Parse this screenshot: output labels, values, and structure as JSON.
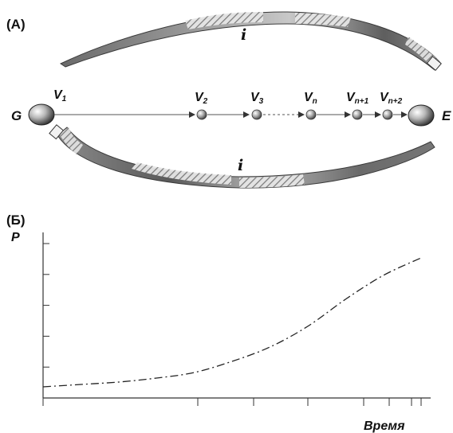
{
  "panels": {
    "a_label": "(A)",
    "b_label": "(Б)"
  },
  "diagram": {
    "start_label": "G",
    "end_label": "E",
    "arc_labels": [
      "i",
      "i"
    ],
    "nodes": [
      {
        "main": "V",
        "sub": "1"
      },
      {
        "main": "V",
        "sub": "2"
      },
      {
        "main": "V",
        "sub": "3"
      },
      {
        "main": "V",
        "sub": "n"
      },
      {
        "main": "V",
        "sub": "n+1"
      },
      {
        "main": "V",
        "sub": "n+2"
      }
    ]
  },
  "chart_data": {
    "type": "line",
    "title": "",
    "xlabel": "Время",
    "ylabel": "P",
    "xlim": [
      0,
      1
    ],
    "ylim": [
      0,
      1
    ],
    "line_style": "dash-dot",
    "x_ticks": 9,
    "y_ticks": 5,
    "grid": false,
    "x": [
      0.0,
      0.1,
      0.2,
      0.3,
      0.4,
      0.5,
      0.6,
      0.7,
      0.8,
      0.9,
      1.0
    ],
    "y": [
      0.07,
      0.085,
      0.1,
      0.125,
      0.16,
      0.23,
      0.32,
      0.45,
      0.62,
      0.77,
      0.88
    ]
  }
}
